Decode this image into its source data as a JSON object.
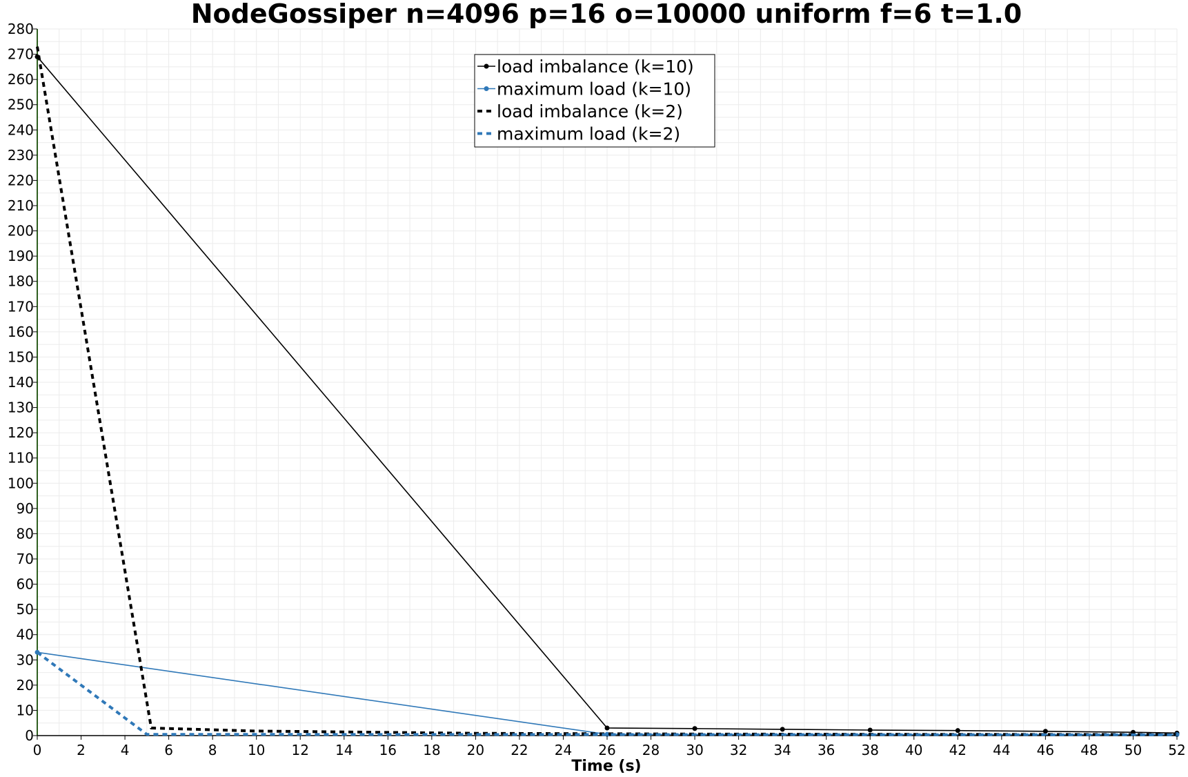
{
  "colors": {
    "black": "#000000",
    "blue": "#2f78b8",
    "y_axis": "#2e5e1e",
    "grid": "#ebebeb"
  },
  "chart_data": {
    "type": "line",
    "title": "NodeGossiper n=4096 p=16 o=10000 uniform f=6 t=1.0",
    "xlabel": "Time (s)",
    "ylabel": "",
    "xlim": [
      0,
      52
    ],
    "ylim": [
      0,
      280
    ],
    "x_ticks": [
      0,
      2,
      4,
      6,
      8,
      10,
      12,
      14,
      16,
      18,
      20,
      22,
      24,
      26,
      28,
      30,
      32,
      34,
      36,
      38,
      40,
      42,
      44,
      46,
      48,
      50,
      52
    ],
    "y_ticks": [
      0,
      10,
      20,
      30,
      40,
      50,
      60,
      70,
      80,
      90,
      100,
      110,
      120,
      130,
      140,
      150,
      160,
      170,
      180,
      190,
      200,
      210,
      220,
      230,
      240,
      250,
      260,
      270,
      280
    ],
    "grid": true,
    "legend_position": "top-center",
    "series": [
      {
        "name": "load imbalance (k=10)",
        "color": "#000000",
        "style": "solid",
        "markers": true,
        "points": [
          [
            0,
            269
          ],
          [
            26,
            3
          ],
          [
            30,
            2.8
          ],
          [
            34,
            2.5
          ],
          [
            38,
            2.2
          ],
          [
            42,
            2.0
          ],
          [
            46,
            1.7
          ],
          [
            50,
            1.3
          ],
          [
            52,
            1.0
          ]
        ]
      },
      {
        "name": "maximum load (k=10)",
        "color": "#2f78b8",
        "style": "solid",
        "markers": true,
        "points": [
          [
            0,
            33
          ],
          [
            26,
            0.5
          ],
          [
            52,
            0.4
          ]
        ]
      },
      {
        "name": "load imbalance (k=2)",
        "color": "#000000",
        "style": "dashed",
        "markers": false,
        "points": [
          [
            0,
            273
          ],
          [
            5.2,
            3
          ],
          [
            10,
            1.8
          ],
          [
            20,
            0.9
          ],
          [
            30,
            0.6
          ],
          [
            40,
            0.5
          ],
          [
            52,
            0.4
          ]
        ]
      },
      {
        "name": "maximum load (k=2)",
        "color": "#2f78b8",
        "style": "dashed",
        "markers": false,
        "points": [
          [
            0,
            33
          ],
          [
            5,
            0.5
          ],
          [
            52,
            0.3
          ]
        ]
      }
    ]
  }
}
